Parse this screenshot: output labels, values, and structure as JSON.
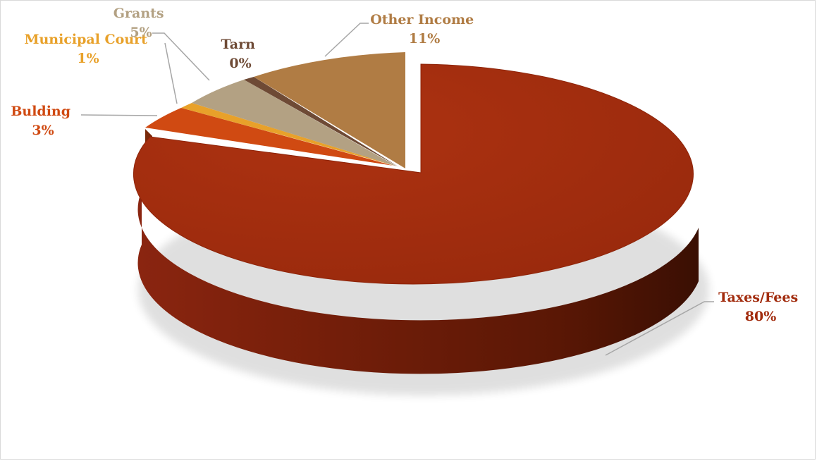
{
  "chart_data": {
    "type": "pie",
    "style": "3d-exploded",
    "title": "",
    "slices": [
      {
        "label": "Taxes/Fees",
        "percent_label": "80%",
        "value": 80,
        "color": "#a22c0e",
        "label_color": "#a22c0e"
      },
      {
        "label": "Bulding",
        "percent_label": "3%",
        "value": 3,
        "color": "#d04a12",
        "label_color": "#d04a12"
      },
      {
        "label": "Municipal Court",
        "percent_label": "1%",
        "value": 1,
        "color": "#e8a12a",
        "label_color": "#e8a12a"
      },
      {
        "label": "Grants",
        "percent_label": "5%",
        "value": 5,
        "color": "#b3a183",
        "label_color": "#b3a183"
      },
      {
        "label": "Tarn",
        "percent_label": "0%",
        "value": 0.4,
        "color": "#6e4a35",
        "label_color": "#6e4a35"
      },
      {
        "label": "Other Income",
        "percent_label": "11%",
        "value": 11,
        "color": "#b07c44",
        "label_color": "#b07c44"
      }
    ]
  }
}
